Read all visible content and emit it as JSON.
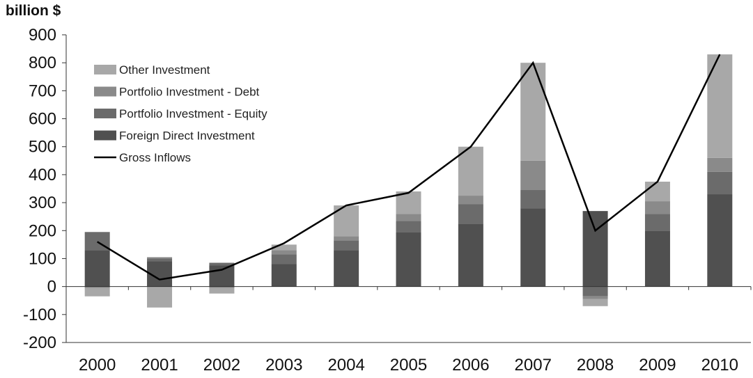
{
  "chart_data": {
    "type": "bar",
    "unit_label": "billion $",
    "categories": [
      "2000",
      "2001",
      "2002",
      "2003",
      "2004",
      "2005",
      "2006",
      "2007",
      "2008",
      "2009",
      "2010"
    ],
    "series": [
      {
        "name": "Foreign Direct Investment",
        "kind": "stacked-bar",
        "color": "#505050",
        "values": [
          130,
          90,
          75,
          80,
          130,
          195,
          225,
          280,
          270,
          200,
          330
        ]
      },
      {
        "name": "Portfolio Investment - Equity",
        "kind": "stacked-bar",
        "color": "#6b6b6b",
        "values": [
          65,
          10,
          10,
          35,
          35,
          40,
          70,
          65,
          -35,
          60,
          80
        ]
      },
      {
        "name": "Portfolio Investment - Debt",
        "kind": "stacked-bar",
        "color": "#8a8a8a",
        "values": [
          -5,
          5,
          -5,
          15,
          15,
          25,
          30,
          105,
          -10,
          45,
          50
        ]
      },
      {
        "name": "Other Investment",
        "kind": "stacked-bar",
        "color": "#a8a8a8",
        "values": [
          -30,
          -75,
          -20,
          20,
          110,
          80,
          175,
          350,
          -25,
          70,
          370
        ]
      },
      {
        "name": "Gross Inflows",
        "kind": "line",
        "color": "#000000",
        "values": [
          160,
          25,
          60,
          155,
          290,
          335,
          500,
          800,
          200,
          375,
          830
        ]
      }
    ],
    "legend_order": [
      "Other Investment",
      "Portfolio Investment - Debt",
      "Portfolio Investment - Equity",
      "Foreign Direct Investment",
      "Gross Inflows"
    ],
    "y_ticks": [
      "900",
      "800",
      "700",
      "600",
      "500",
      "400",
      "300",
      "200",
      "100",
      "0",
      "-100",
      "-200"
    ],
    "ylim": [
      -200,
      900
    ],
    "legend_position": "top-left",
    "grid": false
  }
}
